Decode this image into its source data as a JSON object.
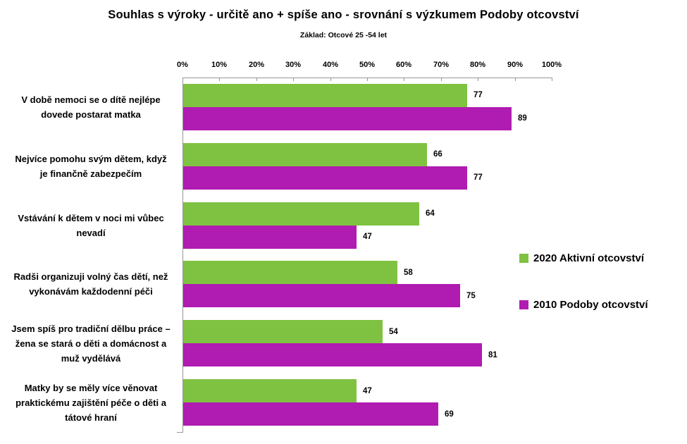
{
  "title": "Souhlas s výroky - určitě ano + spíše ano - srovnání s výzkumem Podoby otcovství",
  "subtitle": "Základ: Otcové 25 -54 let",
  "colors": {
    "series_2020": "#7FC241",
    "series_2010": "#B01BB1",
    "axis_line": "#969696",
    "text": "#000000",
    "background": "#FFFFFF"
  },
  "legend": {
    "position": "right",
    "items": [
      {
        "label": "2020 Aktivní otcovství",
        "color": "#7FC241"
      },
      {
        "label": "2010 Podoby otcovství",
        "color": "#B01BB1"
      }
    ]
  },
  "chart_data": {
    "type": "bar",
    "orientation": "horizontal",
    "title": "Souhlas s výroky - určitě ano + spíše ano - srovnání s výzkumem Podoby otcovství",
    "subtitle": "Základ: Otcové 25 -54 let",
    "xlim": [
      0,
      100
    ],
    "x_tick_labels": [
      "0%",
      "10%",
      "20%",
      "30%",
      "40%",
      "50%",
      "60%",
      "70%",
      "80%",
      "90%",
      "100%"
    ],
    "grid": false,
    "data_labels": true,
    "legend_position": "right",
    "categories": [
      "V době nemoci se o dítě nejlépe dovede postarat matka",
      "Nejvíce pomohu svým dětem, když je finančně zabezpečím",
      "Vstávání k dětem v noci mi vůbec nevadí",
      "Radši organizuji volný čas dětí, než vykonávám každodenní péči",
      "Jsem spíš pro tradiční dělbu práce – žena se stará o děti a domácnost a muž vydělává",
      "Matky by se měly více věnovat praktickému zajištění péče o děti a tátové hraní"
    ],
    "categories_lines": [
      [
        "V době nemoci se o dítě nejlépe",
        "dovede postarat matka"
      ],
      [
        "Nejvíce pomohu svým dětem, když",
        "je finančně zabezpečím"
      ],
      [
        "Vstávání k dětem v noci mi vůbec",
        "nevadí"
      ],
      [
        "Radši organizuji volný čas dětí, než",
        "vykonávám každodenní péči"
      ],
      [
        "Jsem spíš pro tradiční dělbu práce –",
        "žena se stará o děti a domácnost a",
        "muž vydělává"
      ],
      [
        "Matky by se měly více věnovat",
        "praktickému zajištění péče o děti a",
        "tátové hraní"
      ]
    ],
    "series": [
      {
        "name": "2020 Aktivní otcovství",
        "color": "#7FC241",
        "values": [
          77,
          66,
          64,
          58,
          54,
          47
        ]
      },
      {
        "name": "2010 Podoby otcovství",
        "color": "#B01BB1",
        "values": [
          89,
          77,
          47,
          75,
          81,
          69
        ]
      }
    ]
  }
}
